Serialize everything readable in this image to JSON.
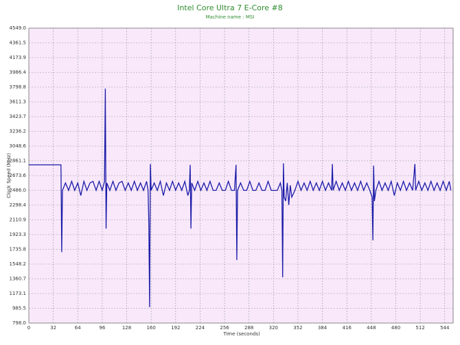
{
  "chart_data": {
    "type": "line",
    "title": "Intel Core Ultra 7 E-Core #8",
    "subtitle": "Machine name : MSI",
    "x_label": "Time (seconds)",
    "y_label": "Clock Speed (MHz)",
    "color": "#1a1aa8",
    "grid": true,
    "xlim": [
      0,
      555
    ],
    "ylim": [
      798,
      4549
    ],
    "xticks": [
      0,
      32,
      64,
      96,
      128,
      160,
      192,
      224,
      256,
      288,
      320,
      352,
      384,
      416,
      448,
      480,
      512,
      544
    ],
    "yticks": [
      {
        "value": 798,
        "label": "798.0"
      },
      985.5,
      1173.1,
      1360.7,
      1548.2,
      1735.8,
      1923.3,
      2110.9,
      2298.4,
      {
        "value": 2486,
        "label": "2486.0"
      },
      2673.6,
      2861.1,
      3048.6,
      3236.2,
      3423.7,
      3611.3,
      3798.8,
      3986.4,
      4173.9,
      4361.5,
      {
        "value": 4549,
        "label": "4549.0"
      }
    ],
    "x": [
      0,
      42,
      43,
      44,
      48,
      52,
      56,
      60,
      64,
      68,
      72,
      76,
      80,
      84,
      88,
      92,
      96,
      99,
      100,
      101,
      102,
      106,
      110,
      114,
      118,
      122,
      126,
      130,
      134,
      138,
      142,
      146,
      150,
      154,
      156,
      157,
      158,
      159,
      160,
      164,
      168,
      172,
      176,
      180,
      184,
      188,
      192,
      196,
      200,
      204,
      208,
      210,
      211,
      212,
      213,
      217,
      221,
      225,
      229,
      233,
      237,
      241,
      245,
      249,
      253,
      257,
      261,
      265,
      269,
      271,
      272,
      273,
      277,
      281,
      285,
      289,
      293,
      297,
      301,
      305,
      309,
      313,
      317,
      321,
      325,
      329,
      331,
      332,
      333,
      334,
      336,
      338,
      340,
      342,
      344,
      348,
      352,
      356,
      360,
      364,
      368,
      372,
      376,
      380,
      384,
      388,
      392,
      396,
      397,
      398,
      402,
      406,
      410,
      414,
      418,
      422,
      426,
      430,
      434,
      438,
      442,
      446,
      449,
      450,
      451,
      452,
      454,
      458,
      462,
      466,
      470,
      474,
      478,
      482,
      486,
      490,
      494,
      498,
      502,
      505,
      506,
      510,
      514,
      518,
      522,
      526,
      530,
      534,
      538,
      542,
      546,
      550,
      552
    ],
    "values": [
      2810,
      2810,
      1700,
      2486,
      2580,
      2486,
      2600,
      2486,
      2580,
      2420,
      2600,
      2486,
      2580,
      2600,
      2486,
      2600,
      2486,
      2600,
      3780,
      2000,
      2580,
      2486,
      2600,
      2486,
      2580,
      2600,
      2486,
      2580,
      2486,
      2600,
      2486,
      2580,
      2486,
      2600,
      2486,
      2050,
      1000,
      2820,
      2486,
      2580,
      2486,
      2600,
      2420,
      2580,
      2486,
      2600,
      2486,
      2580,
      2486,
      2600,
      2420,
      2486,
      2810,
      2000,
      2580,
      2486,
      2600,
      2486,
      2580,
      2486,
      2600,
      2486,
      2486,
      2580,
      2486,
      2486,
      2600,
      2486,
      2486,
      2810,
      1600,
      2486,
      2580,
      2486,
      2486,
      2600,
      2486,
      2486,
      2580,
      2486,
      2486,
      2600,
      2486,
      2486,
      2486,
      2580,
      2486,
      1380,
      2830,
      2400,
      2350,
      2580,
      2300,
      2550,
      2400,
      2486,
      2600,
      2486,
      2580,
      2486,
      2600,
      2486,
      2580,
      2486,
      2600,
      2486,
      2580,
      2486,
      2820,
      2486,
      2600,
      2486,
      2580,
      2486,
      2600,
      2486,
      2580,
      2486,
      2600,
      2486,
      2580,
      2486,
      2400,
      1850,
      2800,
      2350,
      2486,
      2600,
      2486,
      2580,
      2486,
      2600,
      2420,
      2580,
      2486,
      2600,
      2486,
      2580,
      2486,
      2820,
      2486,
      2600,
      2486,
      2580,
      2486,
      2600,
      2486,
      2580,
      2486,
      2600,
      2486,
      2600,
      2486
    ]
  }
}
